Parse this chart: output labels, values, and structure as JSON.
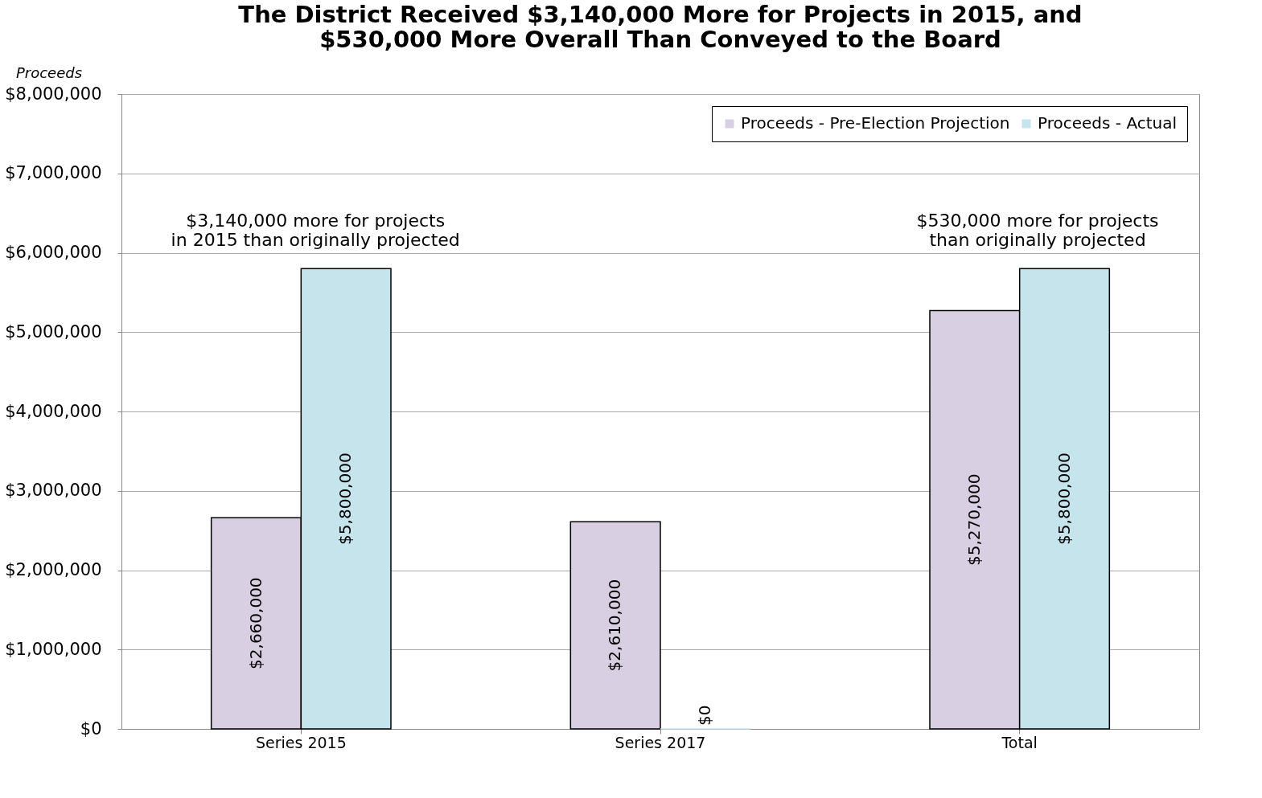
{
  "chart_data": {
    "type": "bar",
    "title": "The District Received $3,140,000 More for Projects in 2015, and $530,000 More Overall Than Conveyed to the Board",
    "ylabel": "Proceeds",
    "categories": [
      "Series 2015",
      "Series 2017",
      "Total"
    ],
    "series": [
      {
        "name": "Proceeds - Pre-Election Projection",
        "color": "#d8cfe3",
        "values": [
          2660000,
          2610000,
          5270000
        ],
        "value_labels": [
          "$2,660,000",
          "$2,610,000",
          "$5,270,000"
        ]
      },
      {
        "name": "Proceeds - Actual",
        "color": "#c5e4ec",
        "values": [
          5800000,
          0,
          5800000
        ],
        "value_labels": [
          "$5,800,000",
          "$0",
          "$5,800,000"
        ]
      }
    ],
    "ylim": [
      0,
      8000000
    ],
    "yticks": [
      {
        "value": 0,
        "label": "$0"
      },
      {
        "value": 1000000,
        "label": "$1,000,000"
      },
      {
        "value": 2000000,
        "label": "$2,000,000"
      },
      {
        "value": 3000000,
        "label": "$3,000,000"
      },
      {
        "value": 4000000,
        "label": "$4,000,000"
      },
      {
        "value": 5000000,
        "label": "$5,000,000"
      },
      {
        "value": 6000000,
        "label": "$6,000,000"
      },
      {
        "value": 7000000,
        "label": "$7,000,000"
      },
      {
        "value": 8000000,
        "label": "$8,000,000"
      }
    ],
    "grid": "y",
    "legend": "top right",
    "annotations": [
      "$3,140,000 more for projects\nin 2015 than originally projected",
      "$530,000 more for projects\nthan originally projected"
    ]
  }
}
